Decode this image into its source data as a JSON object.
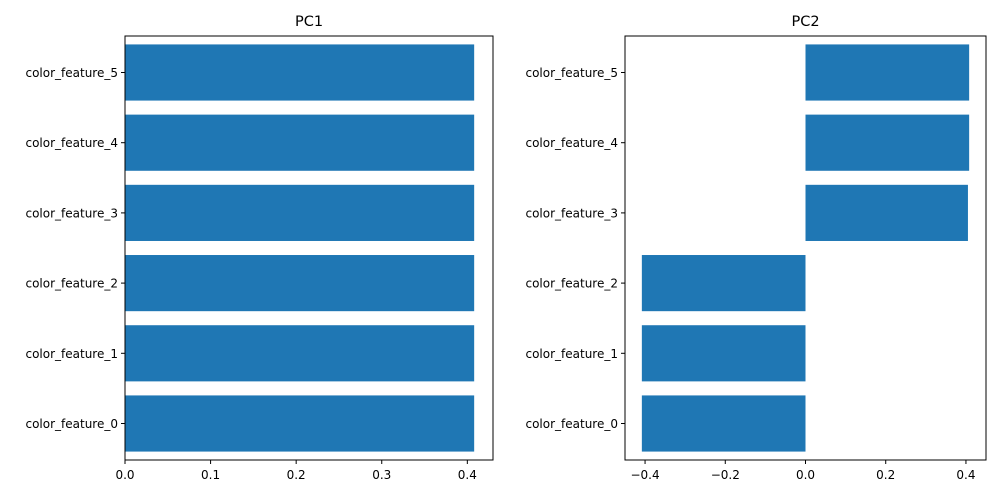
{
  "chart_data": [
    {
      "type": "bar",
      "orientation": "horizontal",
      "title": "PC1",
      "categories": [
        "color_feature_0",
        "color_feature_1",
        "color_feature_2",
        "color_feature_3",
        "color_feature_4",
        "color_feature_5"
      ],
      "values": [
        0.408,
        0.408,
        0.408,
        0.408,
        0.408,
        0.408
      ],
      "xlim": [
        0.0,
        0.43
      ],
      "xticks": [
        0.0,
        0.1,
        0.2,
        0.3,
        0.4
      ],
      "xtick_labels": [
        "0.0",
        "0.1",
        "0.2",
        "0.3",
        "0.4"
      ],
      "bar_color": "#1f77b4",
      "grid": false
    },
    {
      "type": "bar",
      "orientation": "horizontal",
      "title": "PC2",
      "categories": [
        "color_feature_0",
        "color_feature_1",
        "color_feature_2",
        "color_feature_3",
        "color_feature_4",
        "color_feature_5"
      ],
      "values": [
        -0.408,
        -0.408,
        -0.408,
        0.405,
        0.408,
        0.408
      ],
      "xlim": [
        -0.45,
        0.45
      ],
      "xticks": [
        -0.4,
        -0.2,
        0.0,
        0.2,
        0.4
      ],
      "xtick_labels": [
        "−0.4",
        "−0.2",
        "0.0",
        "0.2",
        "0.4"
      ],
      "bar_color": "#1f77b4",
      "grid": false
    }
  ]
}
